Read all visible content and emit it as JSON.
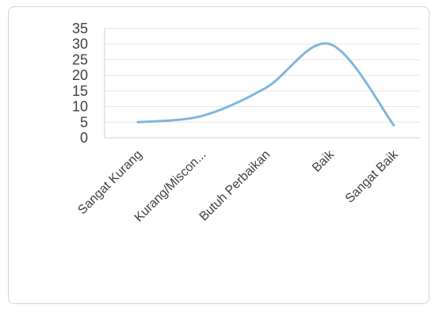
{
  "chart_data": {
    "type": "line",
    "categories": [
      "Sangat Kurang",
      "Kurang/Miscon...",
      "Butuh Perbaikan",
      "Baik",
      "Sangat Baik"
    ],
    "series": [
      {
        "values": [
          5,
          7,
          16,
          30,
          4
        ]
      }
    ],
    "ylim": [
      0,
      35
    ],
    "yticks": [
      0,
      5,
      10,
      15,
      20,
      25,
      30,
      35
    ],
    "grid": true,
    "smooth": true,
    "line_color": "#7fb6dd",
    "grid_color": "#e6e6e6",
    "axis_color": "#d0d0d0",
    "legend": "none"
  }
}
